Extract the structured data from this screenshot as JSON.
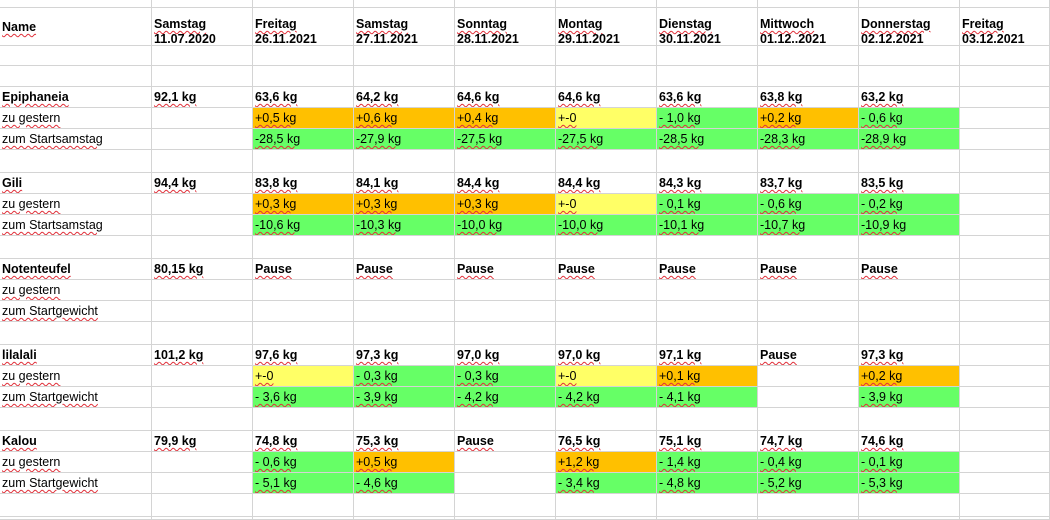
{
  "colors": {
    "orange": "#ffc000",
    "yellow": "#ffff66",
    "green": "#66ff66",
    "grid": "#d4d4d4"
  },
  "header": {
    "name_label": "Name",
    "days": [
      {
        "day": "Samstag",
        "date": "11.07.2020"
      },
      {
        "day": "Freitag",
        "date": "26.11.2021"
      },
      {
        "day": "Samstag",
        "date": "27.11.2021"
      },
      {
        "day": "Sonntag",
        "date": "28.11.2021"
      },
      {
        "day": "Montag",
        "date": "29.11.2021"
      },
      {
        "day": "Dienstag",
        "date": "30.11.2021"
      },
      {
        "day": "Mittwoch",
        "date": "01.12..2021"
      },
      {
        "day": "Donnerstag",
        "date": "02.12.2021"
      },
      {
        "day": "Freitag",
        "date": "03.12.2021"
      }
    ]
  },
  "people": [
    {
      "name": "Epiphaneia",
      "weights": [
        "92,1 kg",
        "63,6 kg",
        "64,2 kg",
        "64,6 kg",
        "64,6 kg",
        "63,6 kg",
        "63,8 kg",
        "63,2 kg",
        ""
      ],
      "diff_label": "zu gestern",
      "diff": [
        {
          "text": "",
          "color": ""
        },
        {
          "text": "+0,5 kg",
          "color": "orange"
        },
        {
          "text": "+0,6 kg",
          "color": "orange"
        },
        {
          "text": "+0,4 kg",
          "color": "orange"
        },
        {
          "text": "+-0",
          "color": "yellow"
        },
        {
          "text": "- 1,0 kg",
          "color": "green"
        },
        {
          "text": "+0,2 kg",
          "color": "orange"
        },
        {
          "text": "- 0,6 kg",
          "color": "green"
        },
        {
          "text": "",
          "color": ""
        }
      ],
      "total_label": "zum Startsamstag",
      "total": [
        {
          "text": "",
          "color": ""
        },
        {
          "text": "-28,5 kg",
          "color": "green"
        },
        {
          "text": "-27,9 kg",
          "color": "green"
        },
        {
          "text": "-27,5 kg",
          "color": "green"
        },
        {
          "text": "-27,5 kg",
          "color": "green"
        },
        {
          "text": "-28,5 kg",
          "color": "green"
        },
        {
          "text": "-28,3 kg",
          "color": "green"
        },
        {
          "text": "-28,9 kg",
          "color": "green"
        },
        {
          "text": "",
          "color": ""
        }
      ]
    },
    {
      "name": "Gili",
      "weights": [
        "94,4 kg",
        "83,8 kg",
        "84,1 kg",
        "84,4 kg",
        "84,4 kg",
        "84,3 kg",
        "83,7 kg",
        "83,5 kg",
        ""
      ],
      "diff_label": "zu gestern",
      "diff": [
        {
          "text": "",
          "color": ""
        },
        {
          "text": "+0,3 kg",
          "color": "orange"
        },
        {
          "text": "+0,3 kg",
          "color": "orange"
        },
        {
          "text": "+0,3 kg",
          "color": "orange"
        },
        {
          "text": "+-0",
          "color": "yellow"
        },
        {
          "text": "- 0,1 kg",
          "color": "green"
        },
        {
          "text": "- 0,6 kg",
          "color": "green"
        },
        {
          "text": "- 0,2 kg",
          "color": "green"
        },
        {
          "text": "",
          "color": ""
        }
      ],
      "total_label": "zum Startsamstag",
      "total": [
        {
          "text": "",
          "color": ""
        },
        {
          "text": "-10,6 kg",
          "color": "green"
        },
        {
          "text": "-10,3 kg",
          "color": "green"
        },
        {
          "text": "-10,0 kg",
          "color": "green"
        },
        {
          "text": "-10,0 kg",
          "color": "green"
        },
        {
          "text": "-10,1 kg",
          "color": "green"
        },
        {
          "text": "-10,7 kg",
          "color": "green"
        },
        {
          "text": "-10,9 kg",
          "color": "green"
        },
        {
          "text": "",
          "color": ""
        }
      ]
    },
    {
      "name": "Notenteufel",
      "weights": [
        "80,15 kg",
        "Pause",
        "Pause",
        "Pause",
        "Pause",
        "Pause",
        "Pause",
        "Pause",
        ""
      ],
      "diff_label": "zu gestern",
      "diff": [
        {
          "text": "",
          "color": ""
        },
        {
          "text": "",
          "color": ""
        },
        {
          "text": "",
          "color": ""
        },
        {
          "text": "",
          "color": ""
        },
        {
          "text": "",
          "color": ""
        },
        {
          "text": "",
          "color": ""
        },
        {
          "text": "",
          "color": ""
        },
        {
          "text": "",
          "color": ""
        },
        {
          "text": "",
          "color": ""
        }
      ],
      "total_label": "zum Startgewicht",
      "total": [
        {
          "text": "",
          "color": ""
        },
        {
          "text": "",
          "color": ""
        },
        {
          "text": "",
          "color": ""
        },
        {
          "text": "",
          "color": ""
        },
        {
          "text": "",
          "color": ""
        },
        {
          "text": "",
          "color": ""
        },
        {
          "text": "",
          "color": ""
        },
        {
          "text": "",
          "color": ""
        },
        {
          "text": "",
          "color": ""
        }
      ]
    },
    {
      "name": "lilalali",
      "weights": [
        "101,2 kg",
        "97,6 kg",
        "97,3 kg",
        "97,0 kg",
        "97,0 kg",
        "97,1 kg",
        "Pause",
        "97,3 kg",
        ""
      ],
      "diff_label": "zu gestern",
      "diff": [
        {
          "text": "",
          "color": ""
        },
        {
          "text": "+-0",
          "color": "yellow"
        },
        {
          "text": "- 0,3 kg",
          "color": "green"
        },
        {
          "text": "- 0,3 kg",
          "color": "green"
        },
        {
          "text": "+-0",
          "color": "yellow"
        },
        {
          "text": "+0,1 kg",
          "color": "orange"
        },
        {
          "text": "",
          "color": ""
        },
        {
          "text": "+0,2 kg",
          "color": "orange"
        },
        {
          "text": "",
          "color": ""
        }
      ],
      "total_label": "zum Startgewicht",
      "total": [
        {
          "text": "",
          "color": ""
        },
        {
          "text": "- 3,6 kg",
          "color": "green"
        },
        {
          "text": "- 3,9 kg",
          "color": "green"
        },
        {
          "text": "- 4,2 kg",
          "color": "green"
        },
        {
          "text": "- 4,2 kg",
          "color": "green"
        },
        {
          "text": "- 4,1 kg",
          "color": "green"
        },
        {
          "text": "",
          "color": ""
        },
        {
          "text": "- 3,9 kg",
          "color": "green"
        },
        {
          "text": "",
          "color": ""
        }
      ]
    },
    {
      "name": "Kalou",
      "weights": [
        "79,9 kg",
        "74,8 kg",
        "75,3 kg",
        "Pause",
        "76,5 kg",
        "75,1 kg",
        "74,7 kg",
        "74,6 kg",
        ""
      ],
      "diff_label": "zu gestern",
      "diff": [
        {
          "text": "",
          "color": ""
        },
        {
          "text": "- 0,6 kg",
          "color": "green"
        },
        {
          "text": "+0,5 kg",
          "color": "orange"
        },
        {
          "text": "",
          "color": ""
        },
        {
          "text": "+1,2 kg",
          "color": "orange"
        },
        {
          "text": "- 1,4 kg",
          "color": "green"
        },
        {
          "text": "- 0,4 kg",
          "color": "green"
        },
        {
          "text": "- 0,1 kg",
          "color": "green"
        },
        {
          "text": "",
          "color": ""
        }
      ],
      "total_label": "zum Startgewicht",
      "total": [
        {
          "text": "",
          "color": ""
        },
        {
          "text": "- 5,1 kg",
          "color": "green"
        },
        {
          "text": "- 4,6 kg",
          "color": "green"
        },
        {
          "text": "",
          "color": ""
        },
        {
          "text": "- 3,4 kg",
          "color": "green"
        },
        {
          "text": "- 4,8 kg",
          "color": "green"
        },
        {
          "text": "- 5,2 kg",
          "color": "green"
        },
        {
          "text": "- 5,3 kg",
          "color": "green"
        },
        {
          "text": "",
          "color": ""
        }
      ]
    }
  ]
}
